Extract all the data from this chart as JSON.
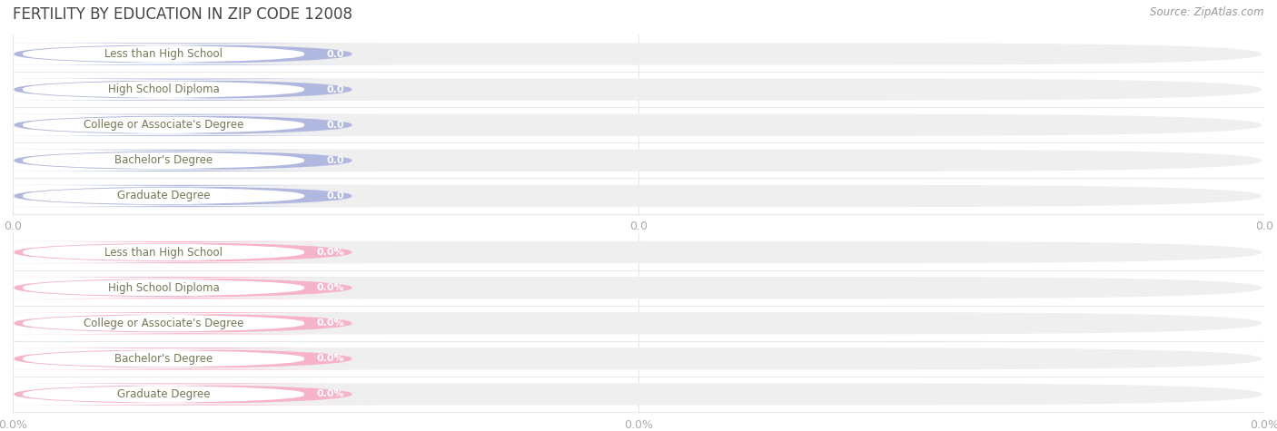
{
  "title": "FERTILITY BY EDUCATION IN ZIP CODE 12008",
  "source": "Source: ZipAtlas.com",
  "categories": [
    "Less than High School",
    "High School Diploma",
    "College or Associate's Degree",
    "Bachelor's Degree",
    "Graduate Degree"
  ],
  "values_top": [
    0.0,
    0.0,
    0.0,
    0.0,
    0.0
  ],
  "values_bottom": [
    0.0,
    0.0,
    0.0,
    0.0,
    0.0
  ],
  "bar_color_top": "#b0b8e0",
  "bar_color_bottom": "#f7b3c8",
  "bar_bg_color": "#efefef",
  "text_color": "#777755",
  "title_color": "#444444",
  "value_color_top": "#9099c8",
  "value_color_bottom": "#e87aa0",
  "source_color": "#999999",
  "xtick_color": "#aaaaaa",
  "background_color": "#ffffff",
  "grid_color": "#e8e8e8",
  "bar_height": 0.62,
  "n_bars": 5,
  "xtick_labels_top": [
    "0.0",
    "0.0",
    "0.0"
  ],
  "xtick_labels_bottom": [
    "0.0%",
    "0.0%",
    "0.0%"
  ]
}
